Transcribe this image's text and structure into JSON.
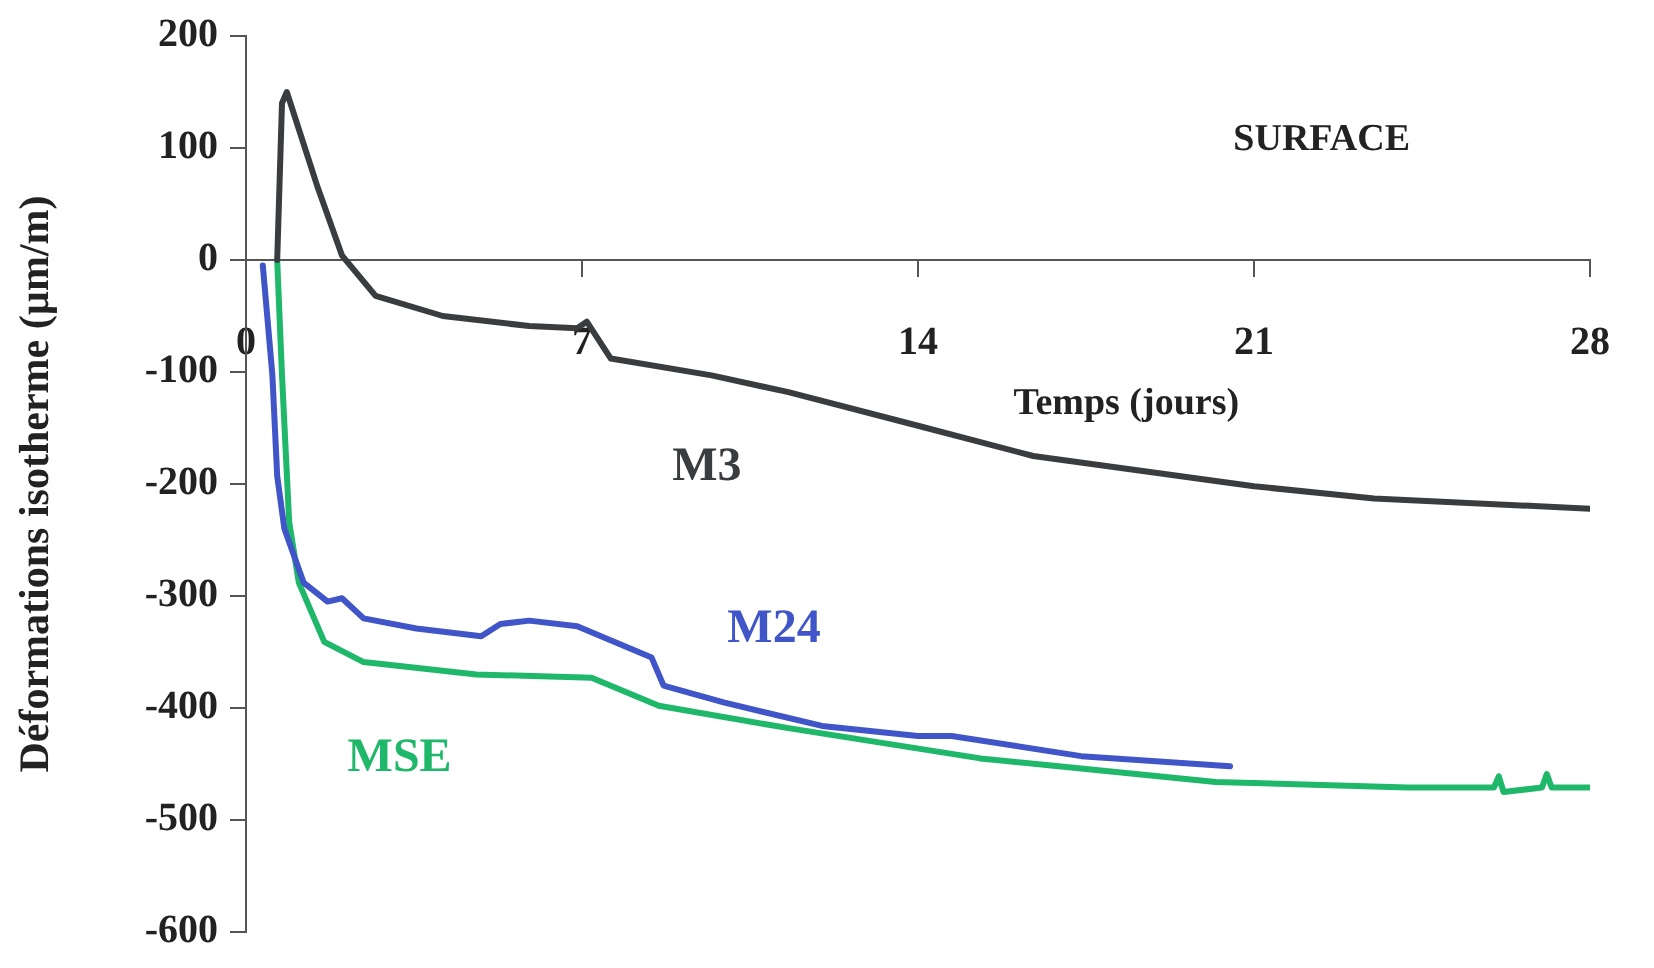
{
  "chart_data": {
    "type": "line",
    "xlabel": "Temps (jours)",
    "ylabel": "Déformations isotherme (µm/m)",
    "annotations": [
      "SURFACE"
    ],
    "xlim": [
      0,
      28
    ],
    "xticks": [
      0,
      7,
      14,
      21,
      28
    ],
    "ylim": [
      -600,
      200
    ],
    "yticks": [
      -600,
      -500,
      -400,
      -300,
      -200,
      -100,
      0,
      100,
      200
    ],
    "grid": false,
    "legend": false,
    "marker": "none",
    "line_style": "solid",
    "series": [
      {
        "name": "M3",
        "color": "#3a3d40",
        "x": [
          0.65,
          0.75,
          0.85,
          1.5,
          2.0,
          2.7,
          4.1,
          5.9,
          6.9,
          7.1,
          7.6,
          9.7,
          11.3,
          14.0,
          16.4,
          21.0,
          23.5,
          28.0
        ],
        "values": [
          0,
          140,
          150,
          64,
          4,
          -32,
          -50,
          -59,
          -61,
          -55,
          -88,
          -103,
          -118,
          -148,
          -175,
          -202,
          -213,
          -222
        ]
      },
      {
        "name": "M24",
        "color": "#3f55c8",
        "x": [
          0.35,
          0.55,
          0.65,
          0.8,
          1.2,
          1.7,
          2.0,
          2.45,
          3.55,
          4.9,
          5.3,
          5.9,
          6.9,
          8.45,
          8.7,
          9.95,
          12.0,
          14.0,
          14.7,
          17.4,
          20.5
        ],
        "values": [
          -5,
          -103,
          -193,
          -240,
          -288,
          -305,
          -302,
          -320,
          -329,
          -336,
          -325,
          -322,
          -327,
          -355,
          -380,
          -395,
          -416,
          -425,
          -425,
          -443,
          -452
        ]
      },
      {
        "name": "MSE",
        "color": "#1fb86a",
        "x": [
          0.65,
          0.75,
          0.9,
          1.1,
          1.63,
          2.45,
          4.8,
          7.2,
          8.6,
          11.3,
          15.3,
          20.2,
          24.2,
          26.0,
          26.1,
          26.2,
          27.0,
          27.1,
          27.2,
          28.0
        ],
        "values": [
          0,
          -103,
          -234,
          -288,
          -341,
          -359,
          -370,
          -373,
          -398,
          -418,
          -445,
          -466,
          -471,
          -471,
          -461,
          -475,
          -471,
          -459,
          -471,
          -471
        ]
      }
    ]
  }
}
